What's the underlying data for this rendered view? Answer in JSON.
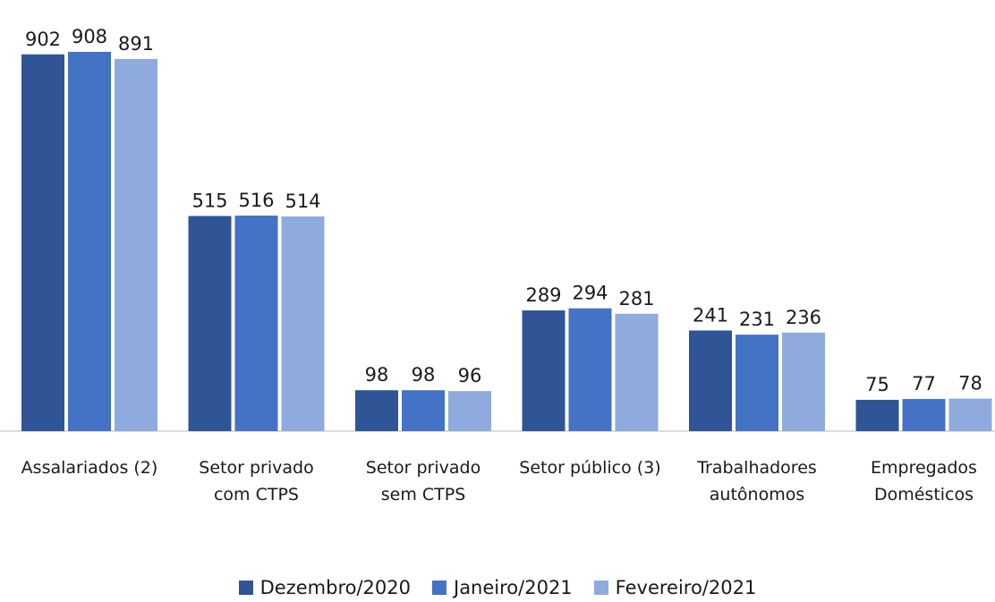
{
  "chart_data": {
    "type": "bar",
    "categories": [
      "Assalariados (2)",
      "Setor privado com CTPS",
      "Setor privado sem CTPS",
      "Setor público (3)",
      "Trabalhadores autônomos",
      "Empregados Domésticos"
    ],
    "series": [
      {
        "name": "Dezembro/2020",
        "color": "#2f5597",
        "values": [
          902,
          515,
          98,
          289,
          241,
          75
        ]
      },
      {
        "name": "Janeiro/2021",
        "color": "#4472c4",
        "values": [
          908,
          516,
          98,
          294,
          231,
          77
        ]
      },
      {
        "name": "Fevereiro/2021",
        "color": "#8faadc",
        "values": [
          891,
          514,
          96,
          281,
          236,
          78
        ]
      }
    ],
    "legend": "bottom"
  }
}
